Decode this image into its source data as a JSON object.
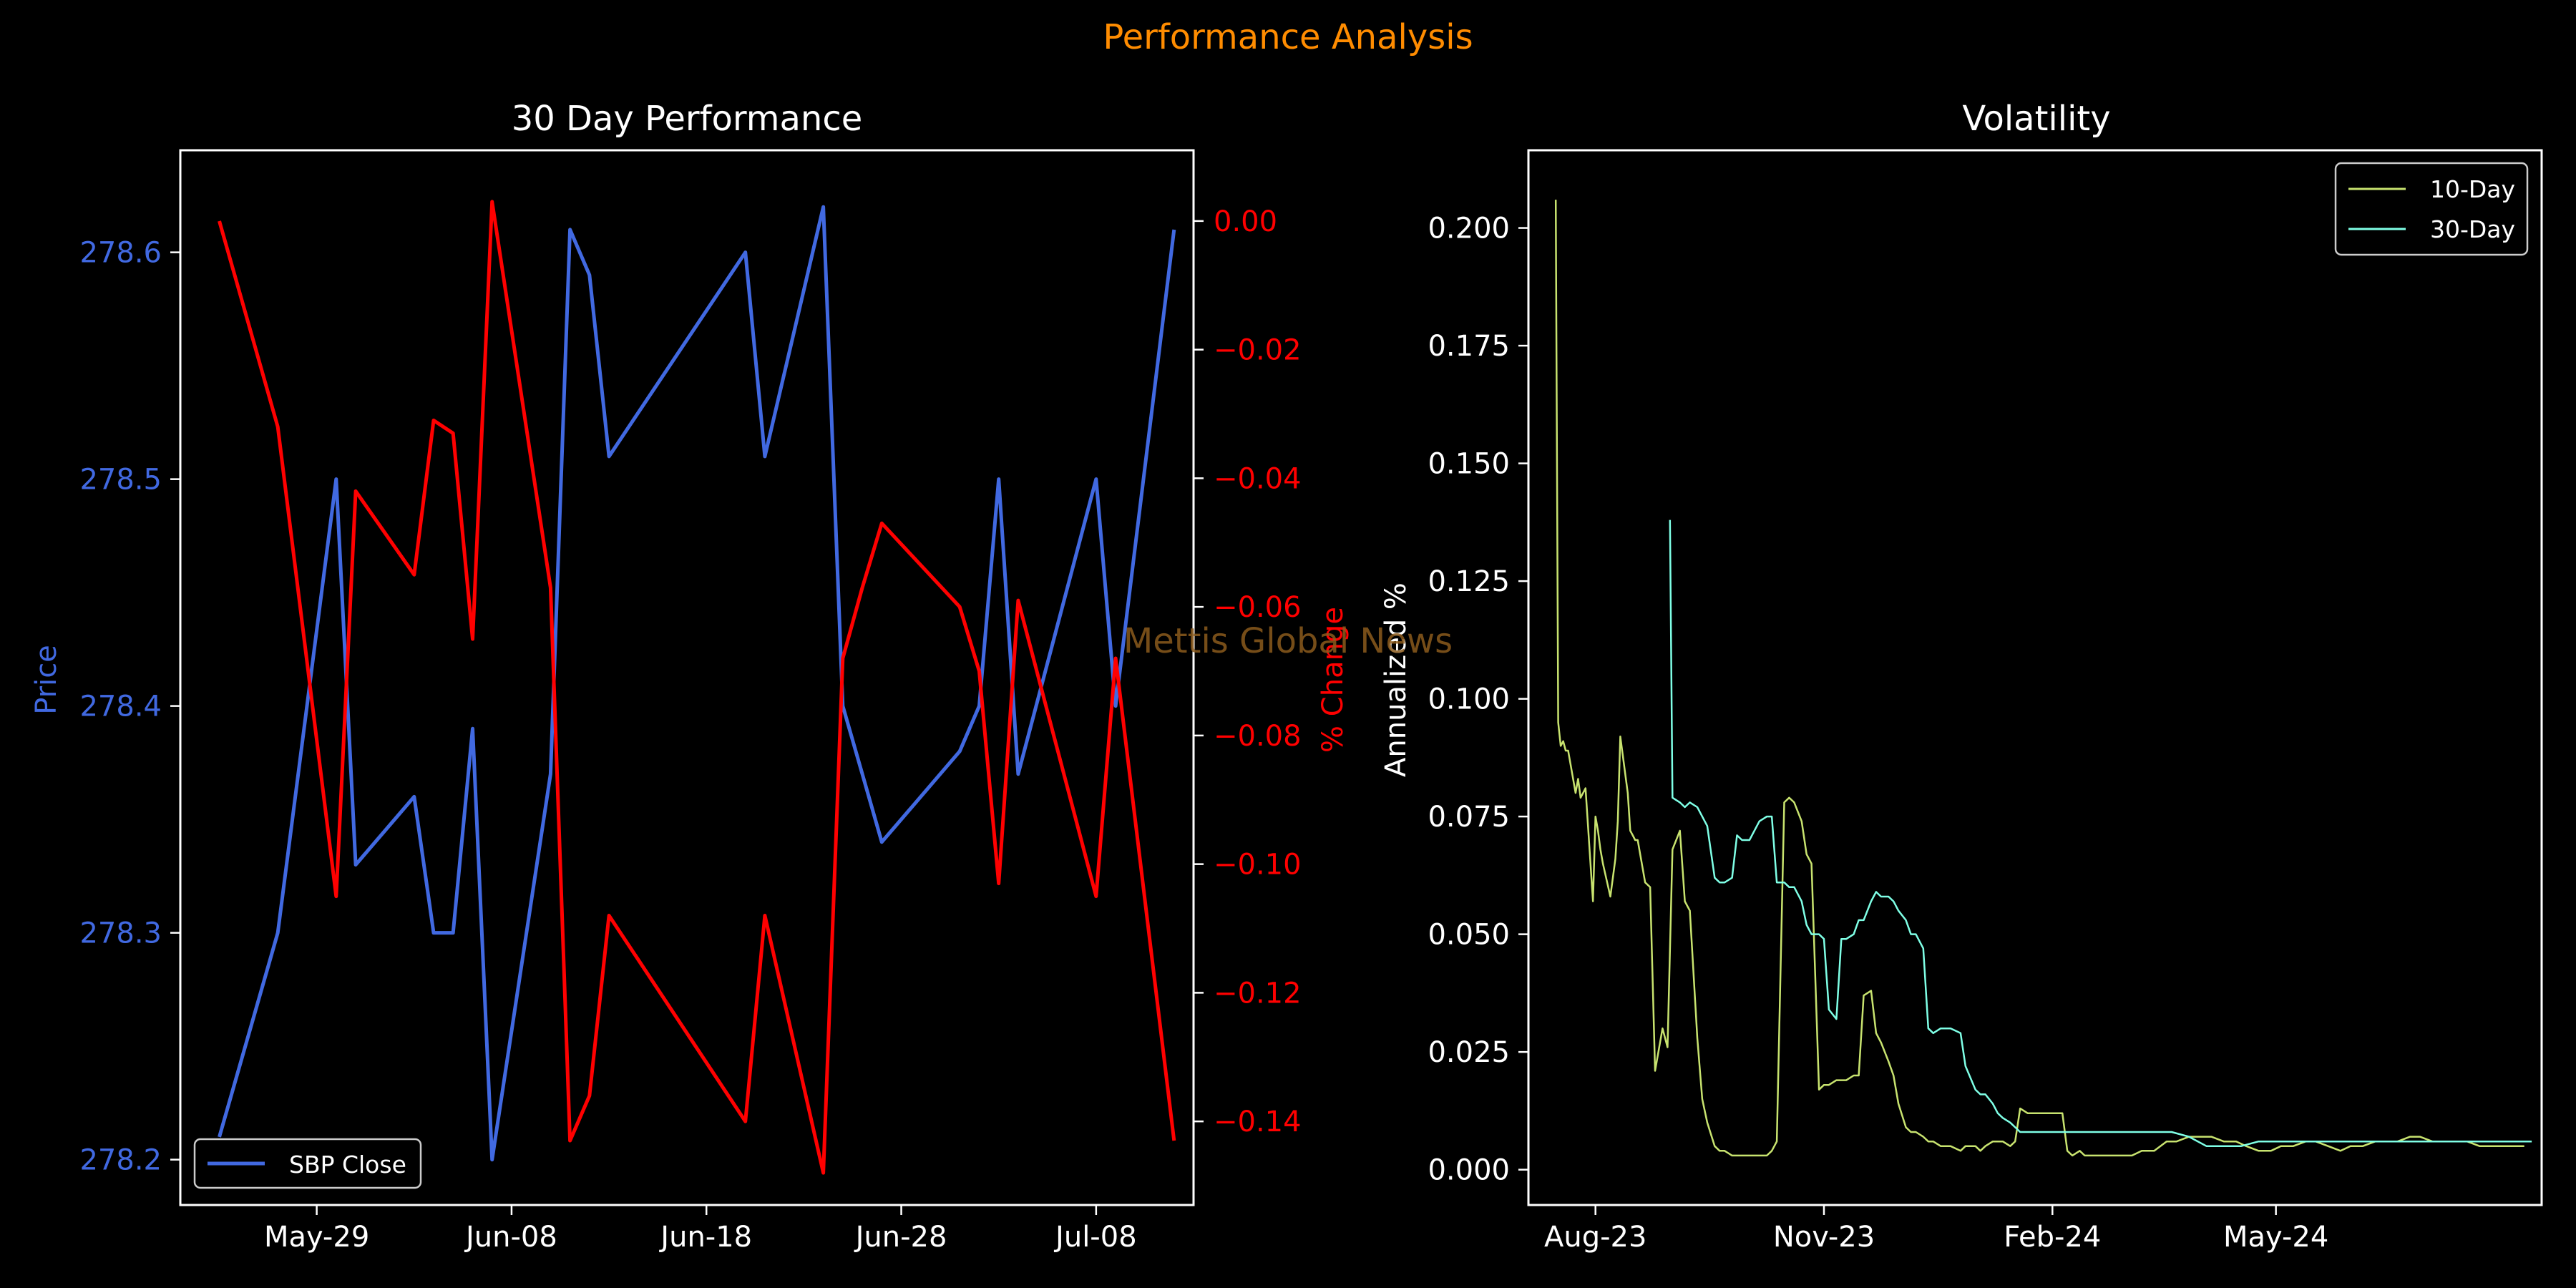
{
  "figure": {
    "suptitle": "Performance Analysis",
    "watermark": "Mettis Global News"
  },
  "colors": {
    "background": "#000000",
    "suptitle": "#ff8c00",
    "price": "#4169e1",
    "pct_change": "#ff0000",
    "vol10": "#c8e36f",
    "vol30": "#7fffe6",
    "watermark": "#8b5a1c",
    "axes": "#ffffff"
  },
  "chart_data": [
    {
      "type": "line",
      "title": "30 Day Performance",
      "xlabel": "",
      "ylabel": "Price",
      "ylabel_right": "% Change",
      "x_ticks": [
        "May-29",
        "Jun-08",
        "Jun-18",
        "Jun-28",
        "Jul-08"
      ],
      "xlim": [
        "2024-05-22",
        "2024-07-13"
      ],
      "ylim": [
        278.18,
        278.645
      ],
      "y_ticks": [
        "278.2",
        "278.3",
        "278.4",
        "278.5",
        "278.6"
      ],
      "y2lim": [
        -0.153,
        0.011
      ],
      "y2_ticks": [
        "0.00",
        "−0.02",
        "−0.04",
        "−0.06",
        "−0.08",
        "−0.10",
        "−0.12",
        "−0.14"
      ],
      "legend": {
        "entries": [
          "SBP Close"
        ],
        "position": "lower-left"
      },
      "grid": false,
      "series": [
        {
          "name": "SBP Close",
          "axis": "left",
          "x": [
            "2024-05-24",
            "2024-05-27",
            "2024-05-30",
            "2024-05-31",
            "2024-06-03",
            "2024-06-04",
            "2024-06-05",
            "2024-06-06",
            "2024-06-07",
            "2024-06-10",
            "2024-06-11",
            "2024-06-12",
            "2024-06-13",
            "2024-06-20",
            "2024-06-21",
            "2024-06-24",
            "2024-06-25",
            "2024-06-26",
            "2024-06-27",
            "2024-07-01",
            "2024-07-02",
            "2024-07-03",
            "2024-07-04",
            "2024-07-08",
            "2024-07-09",
            "2024-07-12"
          ],
          "values": [
            278.21,
            278.3,
            278.5,
            278.33,
            278.36,
            278.3,
            278.3,
            278.39,
            278.2,
            278.37,
            278.61,
            278.59,
            278.51,
            278.6,
            278.51,
            278.62,
            278.4,
            278.37,
            278.34,
            278.38,
            278.4,
            278.5,
            278.37,
            278.5,
            278.4,
            278.61
          ]
        },
        {
          "name": "% Change",
          "axis": "right",
          "x": [
            "2024-05-24",
            "2024-05-27",
            "2024-05-30",
            "2024-05-31",
            "2024-06-03",
            "2024-06-04",
            "2024-06-05",
            "2024-06-06",
            "2024-06-07",
            "2024-06-10",
            "2024-06-11",
            "2024-06-12",
            "2024-06-13",
            "2024-06-20",
            "2024-06-21",
            "2024-06-24",
            "2024-06-25",
            "2024-06-26",
            "2024-06-27",
            "2024-07-01",
            "2024-07-02",
            "2024-07-03",
            "2024-07-04",
            "2024-07-08",
            "2024-07-09",
            "2024-07-12"
          ],
          "values": [
            0.0,
            -0.032,
            -0.105,
            -0.042,
            -0.055,
            -0.031,
            -0.033,
            -0.065,
            0.003,
            -0.057,
            -0.143,
            -0.136,
            -0.108,
            -0.14,
            -0.108,
            -0.148,
            -0.068,
            -0.057,
            -0.047,
            -0.06,
            -0.07,
            -0.103,
            -0.059,
            -0.105,
            -0.068,
            -0.143
          ]
        }
      ]
    },
    {
      "type": "line",
      "title": "Volatility",
      "xlabel": "",
      "ylabel": "Annualized %",
      "x_ticks": [
        "Aug-23",
        "Nov-23",
        "Feb-24",
        "May-24"
      ],
      "xlim": [
        "2023-07-05",
        "2024-08-16"
      ],
      "ylim": [
        -0.0075,
        0.2165
      ],
      "y_ticks": [
        "0.000",
        "0.025",
        "0.050",
        "0.075",
        "0.100",
        "0.125",
        "0.150",
        "0.175",
        "0.200"
      ],
      "legend": {
        "entries": [
          "10-Day",
          "30-Day"
        ],
        "position": "top-right"
      },
      "grid": false,
      "series": [
        {
          "name": "10-Day",
          "x": [
            "2023-07-16",
            "2023-07-17",
            "2023-07-18",
            "2023-07-19",
            "2023-07-20",
            "2023-07-21",
            "2023-07-24",
            "2023-07-25",
            "2023-07-26",
            "2023-07-27",
            "2023-07-28",
            "2023-07-31",
            "2023-08-01",
            "2023-08-02",
            "2023-08-03",
            "2023-08-04",
            "2023-08-07",
            "2023-08-08",
            "2023-08-09",
            "2023-08-10",
            "2023-08-11",
            "2023-08-14",
            "2023-08-15",
            "2023-08-16",
            "2023-08-17",
            "2023-08-18",
            "2023-08-21",
            "2023-08-23",
            "2023-08-25",
            "2023-08-28",
            "2023-08-30",
            "2023-09-01",
            "2023-09-04",
            "2023-09-06",
            "2023-09-08",
            "2023-09-11",
            "2023-09-13",
            "2023-09-15",
            "2023-09-18",
            "2023-09-20",
            "2023-09-22",
            "2023-09-25",
            "2023-09-27",
            "2023-09-29",
            "2023-10-02",
            "2023-10-04",
            "2023-10-06",
            "2023-10-09",
            "2023-10-11",
            "2023-10-13",
            "2023-10-16",
            "2023-10-18",
            "2023-10-20",
            "2023-10-23",
            "2023-10-25",
            "2023-10-27",
            "2023-10-30",
            "2023-11-01",
            "2023-11-03",
            "2023-11-06",
            "2023-11-08",
            "2023-11-10",
            "2023-11-13",
            "2023-11-15",
            "2023-11-17",
            "2023-11-20",
            "2023-11-22",
            "2023-11-24",
            "2023-11-27",
            "2023-11-29",
            "2023-12-01",
            "2023-12-04",
            "2023-12-06",
            "2023-12-08",
            "2023-12-11",
            "2023-12-13",
            "2023-12-15",
            "2023-12-18",
            "2023-12-20",
            "2023-12-22",
            "2023-12-26",
            "2023-12-28",
            "2024-01-01",
            "2024-01-03",
            "2024-01-05",
            "2024-01-08",
            "2024-01-10",
            "2024-01-12",
            "2024-01-15",
            "2024-01-17",
            "2024-01-19",
            "2024-01-22",
            "2024-01-24",
            "2024-01-26",
            "2024-01-29",
            "2024-01-31",
            "2024-02-02",
            "2024-02-05",
            "2024-02-07",
            "2024-02-09",
            "2024-02-12",
            "2024-02-14",
            "2024-02-16",
            "2024-02-19",
            "2024-02-21",
            "2024-02-23",
            "2024-02-26",
            "2024-02-28",
            "2024-03-01",
            "2024-03-04",
            "2024-03-08",
            "2024-03-13",
            "2024-03-18",
            "2024-03-22",
            "2024-03-27",
            "2024-04-01",
            "2024-04-05",
            "2024-04-10",
            "2024-04-15",
            "2024-04-19",
            "2024-04-24",
            "2024-04-29",
            "2024-05-03",
            "2024-05-08",
            "2024-05-13",
            "2024-05-17",
            "2024-05-22",
            "2024-05-27",
            "2024-05-31",
            "2024-06-05",
            "2024-06-10",
            "2024-06-14",
            "2024-06-19",
            "2024-06-24",
            "2024-06-28",
            "2024-07-03",
            "2024-07-08",
            "2024-07-12",
            "2024-07-17",
            "2024-07-22",
            "2024-07-26",
            "2024-07-31",
            "2024-08-05",
            "2024-08-09"
          ],
          "values": [
            0.206,
            0.095,
            0.09,
            0.091,
            0.089,
            0.089,
            0.08,
            0.083,
            0.079,
            0.08,
            0.081,
            0.057,
            0.075,
            0.072,
            0.068,
            0.065,
            0.058,
            0.062,
            0.066,
            0.074,
            0.092,
            0.08,
            0.072,
            0.071,
            0.07,
            0.07,
            0.061,
            0.06,
            0.021,
            0.03,
            0.026,
            0.068,
            0.072,
            0.057,
            0.055,
            0.028,
            0.015,
            0.01,
            0.005,
            0.004,
            0.004,
            0.003,
            0.003,
            0.003,
            0.003,
            0.003,
            0.003,
            0.003,
            0.004,
            0.006,
            0.078,
            0.079,
            0.078,
            0.074,
            0.067,
            0.065,
            0.017,
            0.018,
            0.018,
            0.019,
            0.019,
            0.019,
            0.02,
            0.02,
            0.037,
            0.038,
            0.029,
            0.027,
            0.023,
            0.02,
            0.014,
            0.009,
            0.008,
            0.008,
            0.007,
            0.006,
            0.006,
            0.005,
            0.005,
            0.005,
            0.004,
            0.005,
            0.005,
            0.004,
            0.005,
            0.006,
            0.006,
            0.006,
            0.005,
            0.006,
            0.013,
            0.012,
            0.012,
            0.012,
            0.012,
            0.012,
            0.012,
            0.012,
            0.004,
            0.003,
            0.004,
            0.003,
            0.003,
            0.003,
            0.003,
            0.003,
            0.003,
            0.003,
            0.003,
            0.003,
            0.004,
            0.004,
            0.006,
            0.006,
            0.007,
            0.007,
            0.007,
            0.006,
            0.006,
            0.005,
            0.004,
            0.004,
            0.005,
            0.005,
            0.006,
            0.006,
            0.005,
            0.004,
            0.005,
            0.005,
            0.006,
            0.006,
            0.006,
            0.007,
            0.007,
            0.006,
            0.006,
            0.006,
            0.006,
            0.005,
            0.005,
            0.005,
            0.005,
            0.005
          ]
        },
        {
          "name": "30-Day",
          "x": [
            "2023-08-31",
            "2023-09-01",
            "2023-09-04",
            "2023-09-06",
            "2023-09-08",
            "2023-09-11",
            "2023-09-13",
            "2023-09-15",
            "2023-09-18",
            "2023-09-20",
            "2023-09-22",
            "2023-09-25",
            "2023-09-27",
            "2023-09-29",
            "2023-10-02",
            "2023-10-04",
            "2023-10-06",
            "2023-10-09",
            "2023-10-11",
            "2023-10-13",
            "2023-10-16",
            "2023-10-18",
            "2023-10-20",
            "2023-10-23",
            "2023-10-25",
            "2023-10-27",
            "2023-10-30",
            "2023-11-01",
            "2023-11-03",
            "2023-11-06",
            "2023-11-08",
            "2023-11-10",
            "2023-11-13",
            "2023-11-15",
            "2023-11-17",
            "2023-11-20",
            "2023-11-22",
            "2023-11-24",
            "2023-11-27",
            "2023-11-29",
            "2023-12-01",
            "2023-12-04",
            "2023-12-06",
            "2023-12-08",
            "2023-12-11",
            "2023-12-13",
            "2023-12-15",
            "2023-12-18",
            "2023-12-20",
            "2023-12-22",
            "2023-12-26",
            "2023-12-28",
            "2024-01-01",
            "2024-01-03",
            "2024-01-05",
            "2024-01-08",
            "2024-01-10",
            "2024-01-12",
            "2024-01-15",
            "2024-01-17",
            "2024-01-19",
            "2024-01-22",
            "2024-01-24",
            "2024-01-26",
            "2024-01-29",
            "2024-01-31",
            "2024-02-02",
            "2024-02-07",
            "2024-02-14",
            "2024-02-21",
            "2024-02-28",
            "2024-03-06",
            "2024-03-13",
            "2024-03-20",
            "2024-03-27",
            "2024-04-03",
            "2024-04-10",
            "2024-04-17",
            "2024-04-24",
            "2024-05-01",
            "2024-05-08",
            "2024-05-15",
            "2024-05-22",
            "2024-05-29",
            "2024-06-05",
            "2024-06-12",
            "2024-06-19",
            "2024-06-26",
            "2024-07-03",
            "2024-07-10",
            "2024-07-17",
            "2024-07-24",
            "2024-07-31",
            "2024-08-07",
            "2024-08-12"
          ],
          "values": [
            0.138,
            0.079,
            0.078,
            0.077,
            0.078,
            0.077,
            0.075,
            0.073,
            0.062,
            0.061,
            0.061,
            0.062,
            0.071,
            0.07,
            0.07,
            0.072,
            0.074,
            0.075,
            0.075,
            0.061,
            0.061,
            0.06,
            0.06,
            0.057,
            0.052,
            0.05,
            0.05,
            0.049,
            0.034,
            0.032,
            0.049,
            0.049,
            0.05,
            0.053,
            0.053,
            0.057,
            0.059,
            0.058,
            0.058,
            0.057,
            0.055,
            0.053,
            0.05,
            0.05,
            0.047,
            0.03,
            0.029,
            0.03,
            0.03,
            0.03,
            0.029,
            0.022,
            0.017,
            0.016,
            0.016,
            0.014,
            0.012,
            0.011,
            0.01,
            0.009,
            0.008,
            0.008,
            0.008,
            0.008,
            0.008,
            0.008,
            0.008,
            0.008,
            0.008,
            0.008,
            0.008,
            0.008,
            0.008,
            0.008,
            0.007,
            0.005,
            0.005,
            0.005,
            0.006,
            0.006,
            0.006,
            0.006,
            0.006,
            0.006,
            0.006,
            0.006,
            0.006,
            0.006,
            0.006,
            0.006,
            0.006,
            0.006,
            0.006,
            0.006,
            0.006
          ]
        }
      ]
    }
  ]
}
